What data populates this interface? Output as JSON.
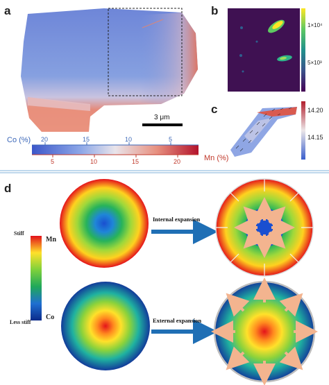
{
  "panels": {
    "a": {
      "label": "a",
      "scalebar": "3 μm",
      "co_axis_label": "Co (%)",
      "co_ticks": [
        "20",
        "15",
        "10",
        "5"
      ],
      "mn_axis_label": "Mn (%)",
      "mn_ticks": [
        "5",
        "10",
        "15",
        "20"
      ]
    },
    "b": {
      "label": "b",
      "colorbar_ticks": [
        "1×10⁴",
        "5×10³"
      ]
    },
    "c": {
      "label": "c",
      "colorbar_ticks": [
        "14.20",
        "14.15"
      ]
    },
    "d": {
      "label": "d",
      "scale_top": "Stiff",
      "scale_bottom": "Less stiff",
      "mn_label": "Mn",
      "co_label": "Co",
      "arrow_top_label": "Internal expansion",
      "arrow_bottom_label": "External expansion"
    }
  },
  "colors": {
    "divider": "#7fb1d8",
    "arrow_blue": "#1f6fb5",
    "expansion_arrow": "#f3b48f",
    "co_axis": "#3b67b8",
    "mn_axis": "#c0392b"
  }
}
